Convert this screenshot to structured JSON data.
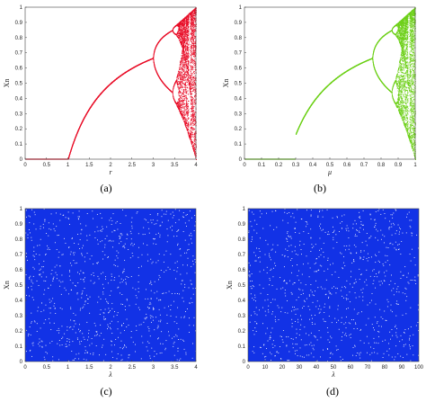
{
  "chart_data": [
    {
      "type": "scatter",
      "panel": "(a)",
      "description": "Bifurcation diagram of the logistic map",
      "xlabel": "r",
      "ylabel": "Xn",
      "xlim": [
        0,
        4
      ],
      "ylim": [
        0,
        1
      ],
      "xticks": [
        "0",
        "0.5",
        "1",
        "1.5",
        "2",
        "2.5",
        "3",
        "3.5",
        "4"
      ],
      "yticks": [
        "0",
        "0.1",
        "0.2",
        "0.3",
        "0.4",
        "0.5",
        "0.6",
        "0.7",
        "0.8",
        "0.9",
        "1"
      ],
      "color": "#e8102a",
      "map": "logistic",
      "param_max": 4,
      "fixed_point_start": 1,
      "period_doubling_at": 3,
      "chaos_onset": 3.57
    },
    {
      "type": "scatter",
      "panel": "(b)",
      "xlabel": "μ",
      "ylabel": "Xn",
      "xlim": [
        0,
        1
      ],
      "ylim": [
        0,
        1
      ],
      "xticks": [
        "0",
        "0.1",
        "0.2",
        "0.3",
        "0.4",
        "0.5",
        "0.6",
        "0.7",
        "0.8",
        "0.9",
        "1"
      ],
      "yticks": [
        "0",
        "0.1",
        "0.2",
        "0.3",
        "0.4",
        "0.5",
        "0.6",
        "0.7",
        "0.8",
        "0.9",
        "1"
      ],
      "color": "#6ed01a",
      "map": "logistic-scaled",
      "param_max": 1,
      "fixed_point_start": 0.3,
      "period_doubling_at": 0.72,
      "chaos_onset": 0.89
    },
    {
      "type": "scatter",
      "panel": "(c)",
      "xlabel": "λ",
      "ylabel": "Xn",
      "xlim": [
        0,
        4
      ],
      "ylim": [
        0,
        1
      ],
      "xticks": [
        "0",
        "0.5",
        "1",
        "1.5",
        "2",
        "2.5",
        "3",
        "3.5",
        "4"
      ],
      "yticks": [
        "0",
        "0.1",
        "0.2",
        "0.3",
        "0.4",
        "0.5",
        "0.6",
        "0.7",
        "0.8",
        "0.9",
        "1"
      ],
      "color": "#1232e6",
      "map": "uniform-chaotic"
    },
    {
      "type": "scatter",
      "panel": "(d)",
      "xlabel": "λ",
      "ylabel": "Xn",
      "xlim": [
        0,
        100
      ],
      "ylim": [
        0,
        1
      ],
      "xticks": [
        "0",
        "10",
        "20",
        "30",
        "40",
        "50",
        "60",
        "70",
        "80",
        "90",
        "100"
      ],
      "yticks": [
        "0",
        "0.1",
        "0.2",
        "0.3",
        "0.4",
        "0.5",
        "0.6",
        "0.7",
        "0.8",
        "0.9",
        "1"
      ],
      "color": "#1232e6",
      "map": "uniform-chaotic"
    }
  ],
  "captions": [
    "(a)",
    "(b)",
    "(c)",
    "(d)"
  ]
}
